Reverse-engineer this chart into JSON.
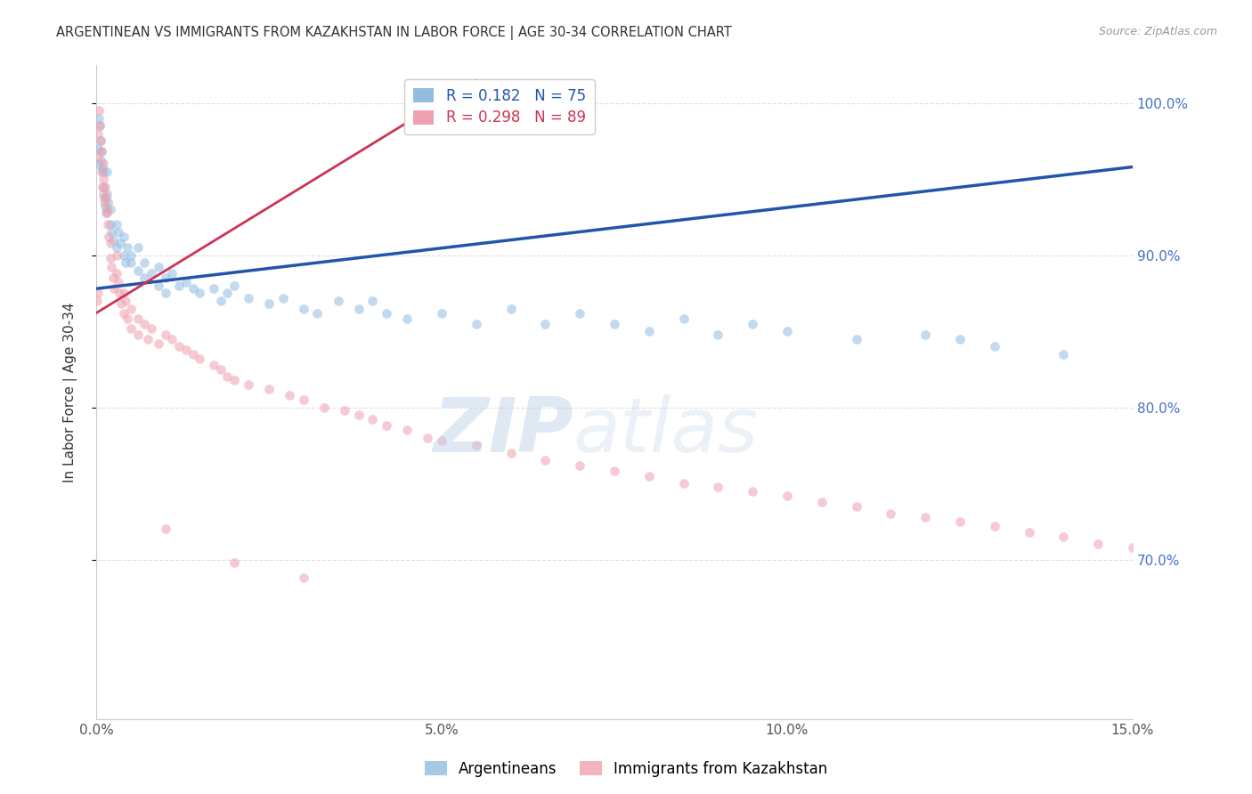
{
  "title": "ARGENTINEAN VS IMMIGRANTS FROM KAZAKHSTAN IN LABOR FORCE | AGE 30-34 CORRELATION CHART",
  "source": "Source: ZipAtlas.com",
  "ylabel": "In Labor Force | Age 30-34",
  "xlim": [
    0.0,
    0.15
  ],
  "ylim": [
    0.595,
    1.025
  ],
  "yticks": [
    0.7,
    0.8,
    0.9,
    1.0
  ],
  "ytick_labels": [
    "70.0%",
    "80.0%",
    "90.0%",
    "100.0%"
  ],
  "xticks": [
    0.0,
    0.05,
    0.1,
    0.15
  ],
  "xtick_labels": [
    "0.0%",
    "5.0%",
    "10.0%",
    "15.0%"
  ],
  "blue_R": 0.182,
  "blue_N": 75,
  "pink_R": 0.298,
  "pink_N": 89,
  "blue_scatter_x": [
    0.0002,
    0.0003,
    0.0004,
    0.0005,
    0.0006,
    0.0007,
    0.0008,
    0.0009,
    0.001,
    0.001,
    0.0012,
    0.0013,
    0.0014,
    0.0015,
    0.0016,
    0.0017,
    0.002,
    0.002,
    0.0022,
    0.0025,
    0.003,
    0.003,
    0.0032,
    0.0035,
    0.004,
    0.004,
    0.0042,
    0.0045,
    0.005,
    0.005,
    0.006,
    0.006,
    0.007,
    0.007,
    0.008,
    0.009,
    0.009,
    0.01,
    0.01,
    0.011,
    0.012,
    0.013,
    0.014,
    0.015,
    0.017,
    0.018,
    0.019,
    0.02,
    0.022,
    0.025,
    0.027,
    0.03,
    0.032,
    0.035,
    0.038,
    0.04,
    0.042,
    0.045,
    0.05,
    0.055,
    0.06,
    0.065,
    0.07,
    0.075,
    0.08,
    0.085,
    0.09,
    0.095,
    0.1,
    0.11,
    0.12,
    0.125,
    0.13,
    0.14
  ],
  "blue_scatter_y": [
    0.96,
    0.97,
    0.99,
    0.985,
    0.975,
    0.968,
    0.962,
    0.957,
    0.955,
    0.945,
    0.938,
    0.932,
    0.928,
    0.955,
    0.94,
    0.935,
    0.93,
    0.92,
    0.915,
    0.91,
    0.92,
    0.905,
    0.915,
    0.908,
    0.9,
    0.912,
    0.895,
    0.905,
    0.895,
    0.9,
    0.905,
    0.89,
    0.895,
    0.885,
    0.888,
    0.892,
    0.88,
    0.885,
    0.875,
    0.888,
    0.88,
    0.882,
    0.878,
    0.875,
    0.878,
    0.87,
    0.875,
    0.88,
    0.872,
    0.868,
    0.872,
    0.865,
    0.862,
    0.87,
    0.865,
    0.87,
    0.862,
    0.858,
    0.862,
    0.855,
    0.865,
    0.855,
    0.862,
    0.855,
    0.85,
    0.858,
    0.848,
    0.855,
    0.85,
    0.845,
    0.848,
    0.845,
    0.84,
    0.835
  ],
  "pink_scatter_x": [
    0.0001,
    0.0002,
    0.0003,
    0.0003,
    0.0004,
    0.0005,
    0.0006,
    0.0007,
    0.0008,
    0.0009,
    0.001,
    0.001,
    0.001,
    0.0012,
    0.0013,
    0.0014,
    0.0015,
    0.0016,
    0.0017,
    0.0018,
    0.002,
    0.002,
    0.0022,
    0.0024,
    0.0026,
    0.003,
    0.003,
    0.0032,
    0.0034,
    0.0036,
    0.004,
    0.004,
    0.0042,
    0.0045,
    0.005,
    0.005,
    0.006,
    0.006,
    0.007,
    0.0075,
    0.008,
    0.009,
    0.01,
    0.011,
    0.012,
    0.013,
    0.014,
    0.015,
    0.017,
    0.018,
    0.019,
    0.02,
    0.022,
    0.025,
    0.028,
    0.03,
    0.033,
    0.036,
    0.038,
    0.04,
    0.042,
    0.045,
    0.048,
    0.05,
    0.055,
    0.06,
    0.065,
    0.07,
    0.075,
    0.08,
    0.085,
    0.09,
    0.095,
    0.1,
    0.105,
    0.11,
    0.115,
    0.12,
    0.125,
    0.13,
    0.135,
    0.14,
    0.145,
    0.15,
    0.01,
    0.02,
    0.03
  ],
  "pink_scatter_y": [
    0.87,
    0.875,
    0.965,
    0.98,
    0.995,
    0.985,
    0.975,
    0.968,
    0.955,
    0.945,
    0.96,
    0.95,
    0.94,
    0.935,
    0.945,
    0.938,
    0.93,
    0.928,
    0.92,
    0.912,
    0.908,
    0.898,
    0.892,
    0.885,
    0.878,
    0.9,
    0.888,
    0.882,
    0.875,
    0.868,
    0.875,
    0.862,
    0.87,
    0.858,
    0.865,
    0.852,
    0.858,
    0.848,
    0.855,
    0.845,
    0.852,
    0.842,
    0.848,
    0.845,
    0.84,
    0.838,
    0.835,
    0.832,
    0.828,
    0.825,
    0.82,
    0.818,
    0.815,
    0.812,
    0.808,
    0.805,
    0.8,
    0.798,
    0.795,
    0.792,
    0.788,
    0.785,
    0.78,
    0.778,
    0.775,
    0.77,
    0.765,
    0.762,
    0.758,
    0.755,
    0.75,
    0.748,
    0.745,
    0.742,
    0.738,
    0.735,
    0.73,
    0.728,
    0.725,
    0.722,
    0.718,
    0.715,
    0.71,
    0.708,
    0.72,
    0.698,
    0.688
  ],
  "blue_line_x": [
    0.0,
    0.15
  ],
  "blue_line_y": [
    0.878,
    0.958
  ],
  "pink_line_x": [
    0.0,
    0.055
  ],
  "pink_line_y": [
    0.862,
    1.015
  ],
  "watermark_zip": "ZIP",
  "watermark_atlas": "atlas",
  "bg_color": "#ffffff",
  "grid_color": "#e0e0e0",
  "blue_color": "#92bce0",
  "pink_color": "#f0a0b0",
  "blue_line_color": "#2255aa",
  "pink_line_color": "#cc3355",
  "title_color": "#333333",
  "right_axis_color": "#4472c4",
  "marker_size": 60,
  "marker_alpha": 0.55
}
